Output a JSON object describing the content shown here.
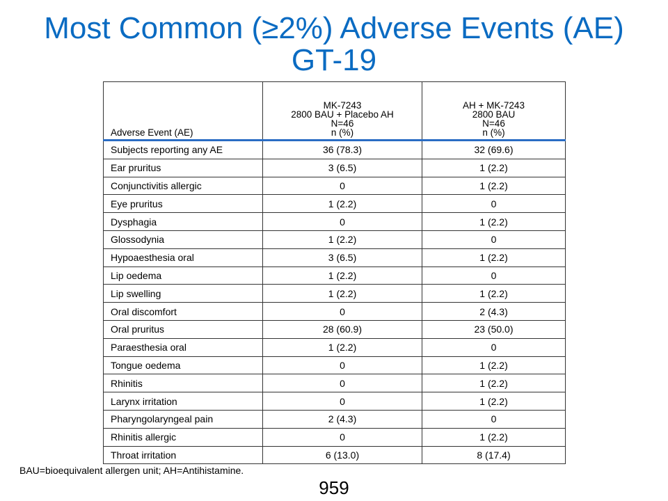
{
  "slide": {
    "title_line1": "Most Common (≥2%) Adverse Events (AE)",
    "title_line2": "GT-19",
    "footnote": "BAU=bioequivalent allergen unit; AH=Antihistamine.",
    "page_number": "959"
  },
  "table": {
    "header": {
      "col1": "Adverse Event (AE)",
      "col2": [
        "MK-7243",
        "2800 BAU + Placebo AH",
        "N=46",
        "n (%)"
      ],
      "col3": [
        "AH + MK-7243",
        "2800 BAU",
        "N=46",
        "n (%)"
      ]
    },
    "rows": [
      {
        "event": "Subjects reporting any AE",
        "a": "36 (78.3)",
        "b": "32 (69.6)"
      },
      {
        "event": "Ear pruritus",
        "a": "3 (6.5)",
        "b": "1 (2.2)"
      },
      {
        "event": "Conjunctivitis allergic",
        "a": "0",
        "b": "1 (2.2)"
      },
      {
        "event": "Eye pruritus",
        "a": "1 (2.2)",
        "b": "0"
      },
      {
        "event": "Dysphagia",
        "a": "0",
        "b": "1 (2.2)"
      },
      {
        "event": "Glossodynia",
        "a": "1 (2.2)",
        "b": "0"
      },
      {
        "event": "Hypoaesthesia oral",
        "a": "3 (6.5)",
        "b": "1 (2.2)"
      },
      {
        "event": "Lip oedema",
        "a": "1 (2.2)",
        "b": "0"
      },
      {
        "event": "Lip swelling",
        "a": "1 (2.2)",
        "b": "1 (2.2)"
      },
      {
        "event": "Oral discomfort",
        "a": "0",
        "b": "2 (4.3)"
      },
      {
        "event": "Oral pruritus",
        "a": "28 (60.9)",
        "b": "23 (50.0)"
      },
      {
        "event": "Paraesthesia oral",
        "a": "1 (2.2)",
        "b": "0"
      },
      {
        "event": "Tongue oedema",
        "a": "0",
        "b": "1 (2.2)"
      },
      {
        "event": "Rhinitis",
        "a": "0",
        "b": "1 (2.2)"
      },
      {
        "event": "Larynx irritation",
        "a": "0",
        "b": "1 (2.2)"
      },
      {
        "event": "Pharyngolaryngeal pain",
        "a": "2 (4.3)",
        "b": "0"
      },
      {
        "event": "Rhinitis allergic",
        "a": "0",
        "b": "1 (2.2)"
      },
      {
        "event": "Throat irritation",
        "a": "6 (13.0)",
        "b": "8 (17.4)"
      }
    ]
  }
}
